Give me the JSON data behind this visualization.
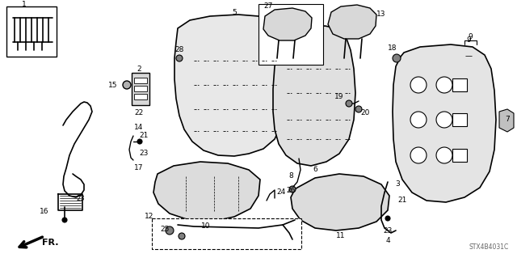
{
  "background_color": "#ffffff",
  "part_number": "STX4B4031C",
  "figsize": [
    6.4,
    3.19
  ],
  "dpi": 100
}
